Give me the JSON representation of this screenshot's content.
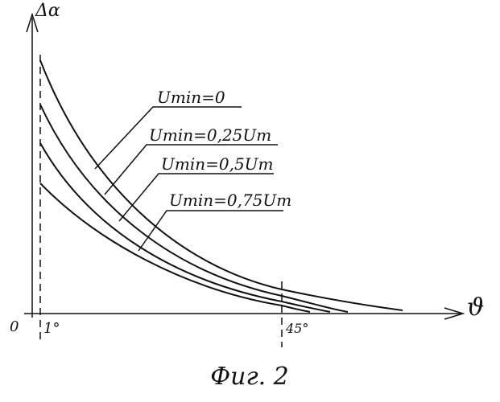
{
  "axes": {
    "y_label": "Δα",
    "x_label": "ϑ",
    "origin": "0",
    "x_marks": [
      "1°",
      "45°"
    ]
  },
  "curves": [
    {
      "label": "Umin=0"
    },
    {
      "label": "Umin=0,25Um"
    },
    {
      "label": "Umin=0,5Um"
    },
    {
      "label": "Umin=0,75Um"
    }
  ],
  "caption": "Фиг. 2"
}
